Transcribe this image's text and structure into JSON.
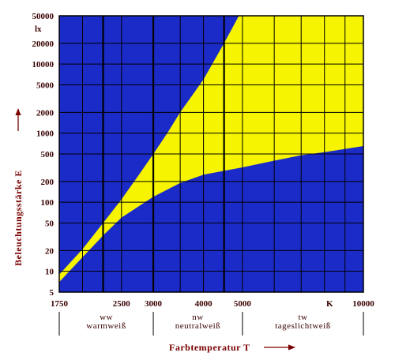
{
  "colors": {
    "region_below": "#1b2bc8",
    "region_pleasant": "#f6f400",
    "region_above": "#1b2bc8",
    "grid": "#000000",
    "text": "#3a0000",
    "title": "#7a0000"
  },
  "chart_data": {
    "type": "area",
    "x_scale": "log",
    "y_scale": "log",
    "xlim": [
      1750,
      10000
    ],
    "ylim": [
      5,
      50000
    ],
    "xlabel": "Farbtemperatur T",
    "ylabel": "Beleuchtungsstärke E",
    "x_unit": "K",
    "y_unit": "lx",
    "x_ticks": [
      1750,
      2500,
      3000,
      4000,
      5000,
      10000
    ],
    "x_tick_labels": [
      "1750",
      "2500",
      "3000",
      "4000",
      "5000",
      "10000"
    ],
    "y_ticks": [
      5,
      10,
      20,
      50,
      100,
      200,
      500,
      1000,
      2000,
      5000,
      10000,
      20000,
      50000
    ],
    "y_tick_labels": [
      "5",
      "10",
      "20",
      "50",
      "100",
      "200",
      "500",
      "1000",
      "2000",
      "5000",
      "10000",
      "20000",
      "50000"
    ],
    "x_gridlines": [
      1750,
      2000,
      2250,
      2500,
      3000,
      3500,
      4000,
      4500,
      5000,
      6000,
      7000,
      8000,
      9000,
      10000
    ],
    "y_gridlines": [
      5,
      10,
      20,
      50,
      100,
      200,
      500,
      1000,
      2000,
      5000,
      10000,
      20000,
      50000
    ],
    "major_x_gridlines": [
      2250,
      3000,
      4500
    ],
    "series": [
      {
        "role": "upper_boundary",
        "x": [
          1750,
          2000,
          2250,
          2500,
          2750,
          3000,
          3250,
          3500,
          4000,
          4500,
          4900
        ],
        "y": [
          9,
          21,
          50,
          110,
          240,
          500,
          1000,
          2000,
          6000,
          20000,
          50000
        ]
      },
      {
        "role": "lower_boundary",
        "x": [
          1750,
          2000,
          2250,
          2500,
          3000,
          3500,
          4000,
          5000,
          6000,
          7000,
          8000,
          10000
        ],
        "y": [
          7,
          16,
          33,
          60,
          120,
          190,
          250,
          320,
          400,
          480,
          530,
          650
        ]
      }
    ],
    "regions": [
      {
        "label": "ww",
        "name": "warmweiß",
        "x_range": [
          1750,
          3000
        ]
      },
      {
        "label": "nw",
        "name": "neutralweiß",
        "x_range": [
          3000,
          5000
        ]
      },
      {
        "label": "tw",
        "name": "tageslichtweiß",
        "x_range": [
          5000,
          10000
        ]
      }
    ],
    "region_boundaries": [
      1750,
      3000,
      5000,
      10000
    ],
    "grid": true,
    "legend": "none"
  }
}
